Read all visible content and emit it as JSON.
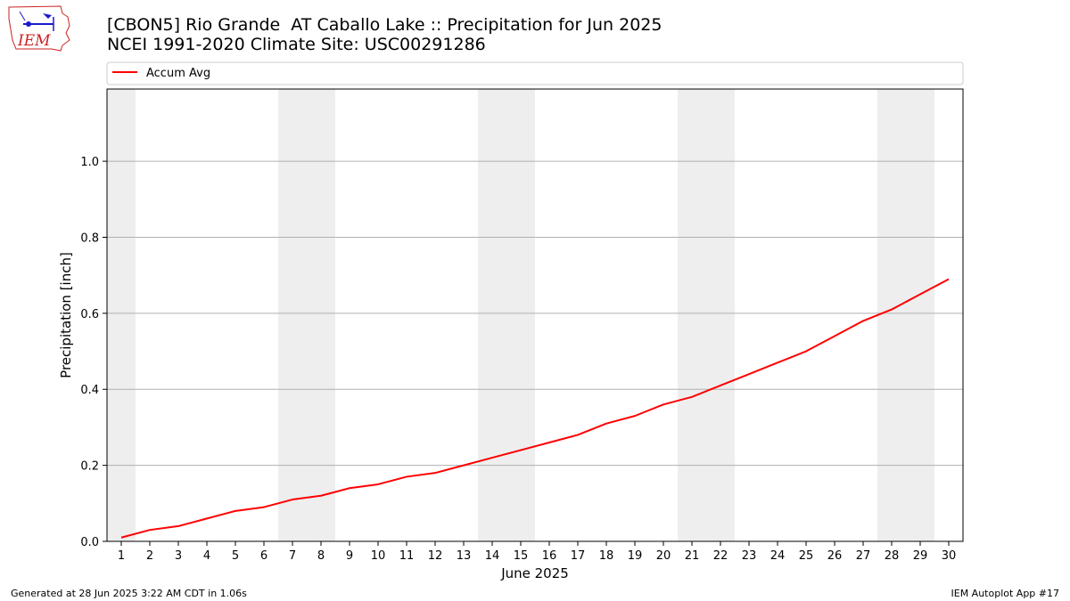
{
  "header": {
    "title_line1": "[CBON5] Rio Grande  AT Caballo Lake :: Precipitation for Jun 2025",
    "title_line2": "NCEI 1991-2020 Climate Site: USC00291286",
    "logo_text": "IEM"
  },
  "footer": {
    "left": "Generated at 28 Jun 2025 3:22 AM CDT in 1.06s",
    "right": "IEM Autoplot App #17"
  },
  "colors": {
    "line": "#ff0000",
    "weekend_band": "#eeeeee",
    "grid": "#b0b0b0",
    "logo_red": "#cc2222",
    "logo_blue": "#1a1acc"
  },
  "chart_data": {
    "type": "line",
    "title": "[CBON5] Rio Grande  AT Caballo Lake :: Precipitation for Jun 2025",
    "subtitle": "NCEI 1991-2020 Climate Site: USC00291286",
    "xlabel": "June 2025",
    "ylabel": "Precipitation [inch]",
    "xlim": [
      0.5,
      30.5
    ],
    "ylim": [
      0,
      1.19
    ],
    "x_ticks": [
      1,
      2,
      3,
      4,
      5,
      6,
      7,
      8,
      9,
      10,
      11,
      12,
      13,
      14,
      15,
      16,
      17,
      18,
      19,
      20,
      21,
      22,
      23,
      24,
      25,
      26,
      27,
      28,
      29,
      30
    ],
    "y_ticks": [
      "0.0",
      "0.2",
      "0.4",
      "0.6",
      "0.8",
      "1.0"
    ],
    "y_tick_values": [
      0,
      0.2,
      0.4,
      0.6,
      0.8,
      1.0
    ],
    "grid": "y-major",
    "legend_position": "top, above plot",
    "weekend_bands": [
      [
        0.5,
        1.5
      ],
      [
        6.5,
        8.5
      ],
      [
        13.5,
        15.5
      ],
      [
        20.5,
        22.5
      ],
      [
        27.5,
        29.5
      ]
    ],
    "series": [
      {
        "name": "Accum Avg",
        "x": [
          1,
          2,
          3,
          4,
          5,
          6,
          7,
          8,
          9,
          10,
          11,
          12,
          13,
          14,
          15,
          16,
          17,
          18,
          19,
          20,
          21,
          22,
          23,
          24,
          25,
          26,
          27,
          28,
          29,
          30
        ],
        "values": [
          0.01,
          0.03,
          0.04,
          0.06,
          0.08,
          0.09,
          0.11,
          0.12,
          0.14,
          0.15,
          0.17,
          0.18,
          0.2,
          0.22,
          0.24,
          0.26,
          0.28,
          0.31,
          0.33,
          0.36,
          0.38,
          0.41,
          0.44,
          0.47,
          0.5,
          0.54,
          0.58,
          0.61,
          0.65,
          0.69
        ]
      }
    ]
  }
}
